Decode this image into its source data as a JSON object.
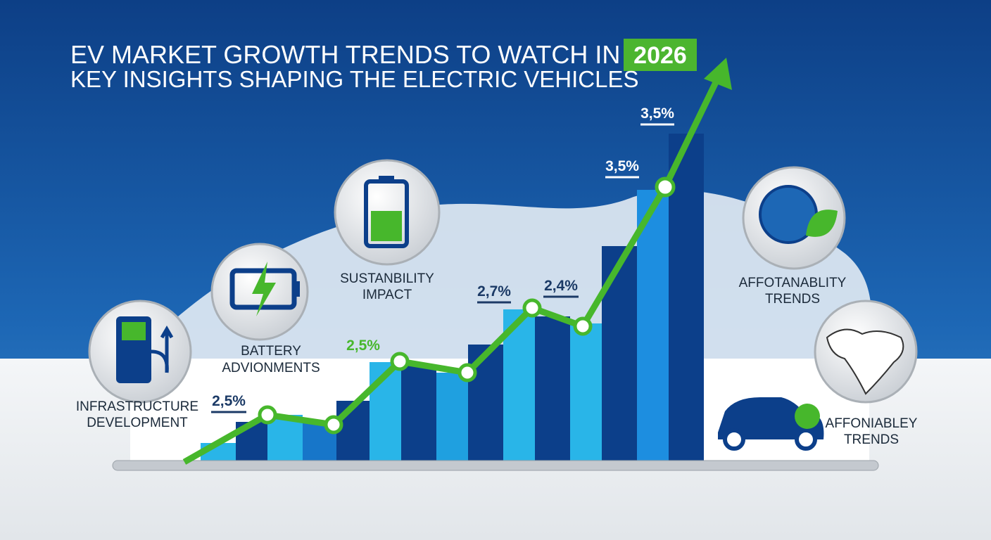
{
  "header": {
    "title": "EV MARKET GROWTH TRENDS TO WATCH IN 2026:",
    "badge": "2026",
    "subtitle": "KEY INSIGHTS SHAPING THE ELECTRIC VEHICLES"
  },
  "point_labels": [
    "2,5%",
    "2,5%",
    "2,7%",
    "2,4%",
    "3,5%",
    "3,5%"
  ],
  "captions": {
    "infrastructure": [
      "INFRASTRUCTURE",
      "DEVELOPMENT"
    ],
    "battery": [
      "BATTERY",
      "ADVIONMENTS"
    ],
    "sustainability": [
      "SUSTANBILITY",
      "IMPACT"
    ],
    "affordability": [
      "AFFOTANABLITY",
      "TRENDS"
    ],
    "affordability_2": [
      "AFFONIABLEY",
      "TRENDS"
    ]
  }
}
